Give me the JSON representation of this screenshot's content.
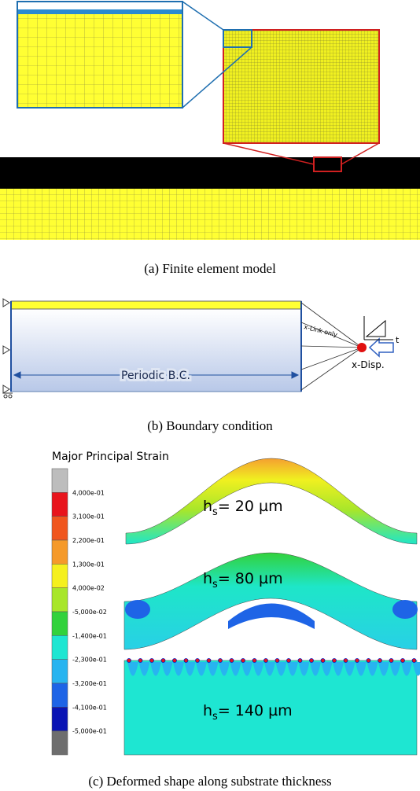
{
  "panel_a": {
    "caption": "(a) Finite element model"
  },
  "panel_b": {
    "link_label": "x-Link only",
    "time_label": "t",
    "disp_label": "x-Disp.",
    "periodic_label": "Periodic B.C.",
    "caption": "(b) Boundary condition"
  },
  "panel_c": {
    "legend": {
      "title": "Major Principal Strain",
      "labels": [
        "4,000e-01",
        "3,100e-01",
        "2,200e-01",
        "1,300e-01",
        "4,000e-02",
        "-5,000e-02",
        "-1,400e-01",
        "-2,300e-01",
        "-3,200e-01",
        "-4,100e-01",
        "-5,000e-01"
      ],
      "colors": [
        "#bdbdbd",
        "#e8141c",
        "#f0561e",
        "#f59a2a",
        "#f5f01e",
        "#a8e62a",
        "#32d23c",
        "#1ee6d2",
        "#28b4f0",
        "#1e64e6",
        "#0a14b4",
        "#6e6e6e"
      ]
    },
    "shapes": [
      {
        "symbol": "h",
        "subscript": "s",
        "text": "= 20 µm"
      },
      {
        "symbol": "h",
        "subscript": "s",
        "text": "= 80 µm"
      },
      {
        "symbol": "h",
        "subscript": "s",
        "text": "= 140 µm"
      }
    ],
    "caption": "(c) Deformed shape along substrate thickness"
  }
}
